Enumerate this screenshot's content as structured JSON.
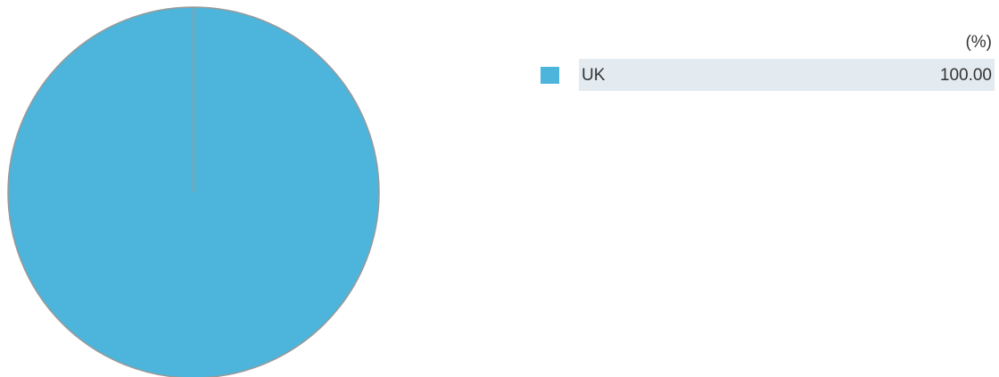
{
  "chart_data": {
    "type": "pie",
    "title": "",
    "unit_label": "(%)",
    "slices": [
      {
        "label": "UK",
        "value": 100.0,
        "value_text": "100.00",
        "color": "#4db5db"
      }
    ],
    "slice_stroke_color": "#999999",
    "legend_band_color": "#e3ebf0",
    "legend_position": "right"
  }
}
